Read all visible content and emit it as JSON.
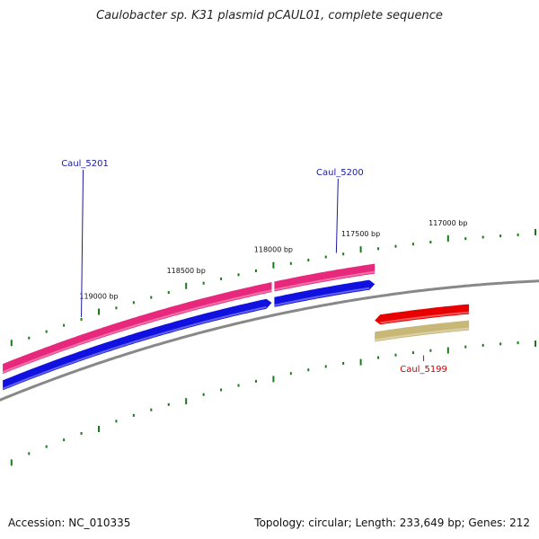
{
  "title": "Caulobacter sp. K31 plasmid pCAUL01, complete sequence",
  "footer": {
    "accession": "Accession: NC_010335",
    "summary": "Topology: circular; Length: 233,649 bp; Genes: 212"
  },
  "colors": {
    "pink_track": "#e8287c",
    "blue_track": "#1010e0",
    "red_track": "#e80000",
    "tan_track": "#c8b878",
    "backbone": "#888888",
    "ticks": "#1a7a1a",
    "forward_label": "#1a1aa0",
    "reverse_label": "#cc0000"
  },
  "scale": {
    "labels": [
      {
        "bp": 119000,
        "text": "119000 bp"
      },
      {
        "bp": 118500,
        "text": "118500 bp"
      },
      {
        "bp": 118000,
        "text": "118000 bp"
      },
      {
        "bp": 117500,
        "text": "117500 bp"
      },
      {
        "bp": 117000,
        "text": "117000 bp"
      }
    ]
  },
  "genes": [
    {
      "name": "Caul_5201",
      "strand": "forward",
      "start_bp": 119550,
      "end_bp": 118010,
      "label_bp": 119100
    },
    {
      "name": "Caul_5200",
      "strand": "forward",
      "start_bp": 117995,
      "end_bp": 117420,
      "label_bp": 117640
    },
    {
      "name": "Caul_5199",
      "strand": "reverse",
      "start_bp": 117420,
      "end_bp": 116880,
      "label_bp": 117140
    }
  ]
}
